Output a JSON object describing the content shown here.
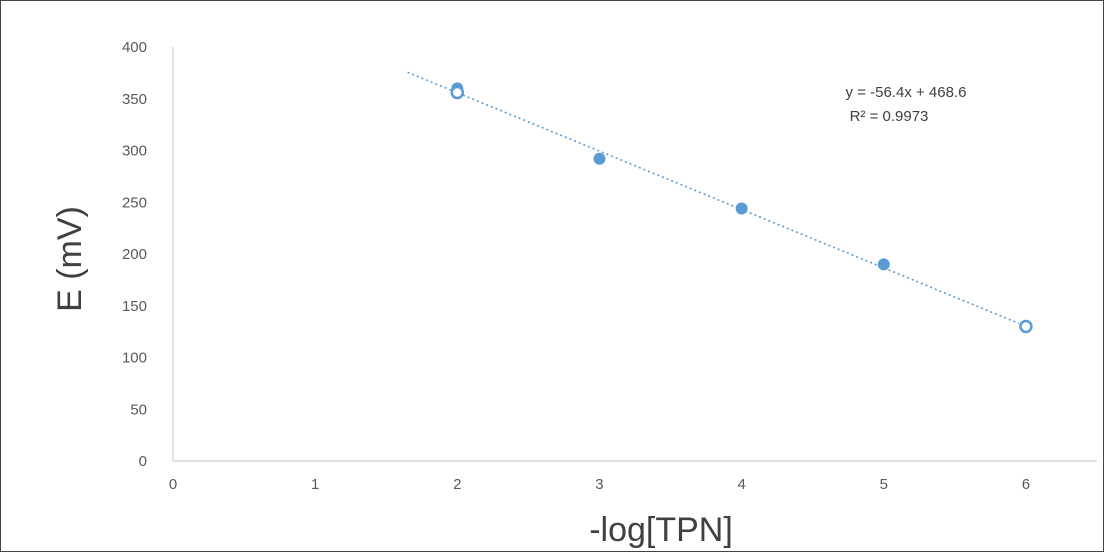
{
  "chart_data": {
    "type": "scatter",
    "xlabel": "-log[TPN]",
    "ylabel": "E (mV)",
    "xlim": [
      0,
      6.5
    ],
    "ylim": [
      0,
      400
    ],
    "xticks": [
      "0",
      "1",
      "2",
      "3",
      "4",
      "5",
      "6"
    ],
    "yticks": [
      "0",
      "50",
      "100",
      "150",
      "200",
      "250",
      "300",
      "350",
      "400"
    ],
    "grid": false,
    "series": [
      {
        "points": [
          {
            "x": 2,
            "y": 360,
            "marker": "filled"
          },
          {
            "x": 2,
            "y": 356,
            "marker": "open"
          },
          {
            "x": 3,
            "y": 292,
            "marker": "filled"
          },
          {
            "x": 4,
            "y": 244,
            "marker": "filled"
          },
          {
            "x": 5,
            "y": 190,
            "marker": "filled"
          },
          {
            "x": 6,
            "y": 130,
            "marker": "open"
          }
        ],
        "color": "#5b9bd5"
      }
    ],
    "trendline": {
      "style": "dotted",
      "x_range": [
        1.65,
        5.95
      ],
      "equation": "y = -56.4x + 468.6",
      "r_squared": "R² = 0.9973",
      "slope": -56.4,
      "intercept": 468.6
    },
    "colors": {
      "axis": "#d9d9d9",
      "text": "#595959",
      "marker": "#5b9bd5"
    }
  }
}
